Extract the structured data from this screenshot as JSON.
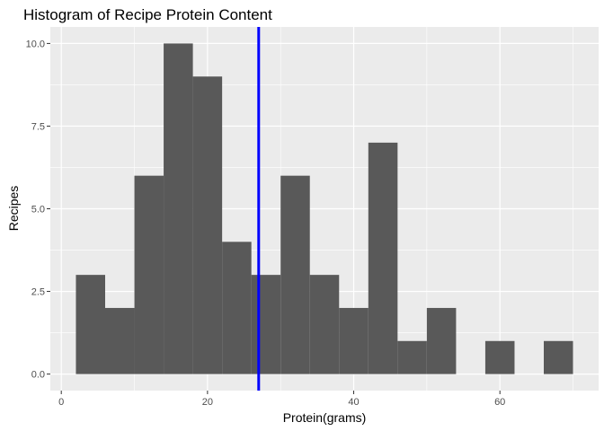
{
  "chart_data": {
    "type": "histogram",
    "title": "Histogram of Recipe Protein Content",
    "xlabel": "Protein(grams)",
    "ylabel": "Recipes",
    "xlim": [
      -1.5,
      73.5
    ],
    "ylim": [
      -0.5,
      10.5
    ],
    "x_ticks": [
      0,
      20,
      40,
      60
    ],
    "x_tick_labels": [
      "0",
      "20",
      "40",
      "60"
    ],
    "y_ticks": [
      0,
      2.5,
      5,
      7.5,
      10
    ],
    "y_tick_labels": [
      "0.0",
      "2.5",
      "5.0",
      "7.5",
      "10.0"
    ],
    "grid": true,
    "bins": [
      {
        "x0": 2,
        "x1": 6,
        "count": 3
      },
      {
        "x0": 6,
        "x1": 10,
        "count": 2
      },
      {
        "x0": 10,
        "x1": 14,
        "count": 6
      },
      {
        "x0": 14,
        "x1": 18,
        "count": 10
      },
      {
        "x0": 18,
        "x1": 22,
        "count": 9
      },
      {
        "x0": 22,
        "x1": 26,
        "count": 4
      },
      {
        "x0": 26,
        "x1": 30,
        "count": 3
      },
      {
        "x0": 30,
        "x1": 34,
        "count": 6
      },
      {
        "x0": 34,
        "x1": 38,
        "count": 3
      },
      {
        "x0": 38,
        "x1": 42,
        "count": 2
      },
      {
        "x0": 42,
        "x1": 46,
        "count": 7
      },
      {
        "x0": 46,
        "x1": 50,
        "count": 1
      },
      {
        "x0": 50,
        "x1": 54,
        "count": 2
      },
      {
        "x0": 54,
        "x1": 58,
        "count": 0
      },
      {
        "x0": 58,
        "x1": 62,
        "count": 1
      },
      {
        "x0": 62,
        "x1": 66,
        "count": 0
      },
      {
        "x0": 66,
        "x1": 70,
        "count": 1
      }
    ],
    "vline": {
      "x": 27,
      "color": "#0000ff"
    },
    "colors": {
      "bar": "#595959",
      "panel": "#ebebeb",
      "grid": "#ffffff"
    }
  }
}
